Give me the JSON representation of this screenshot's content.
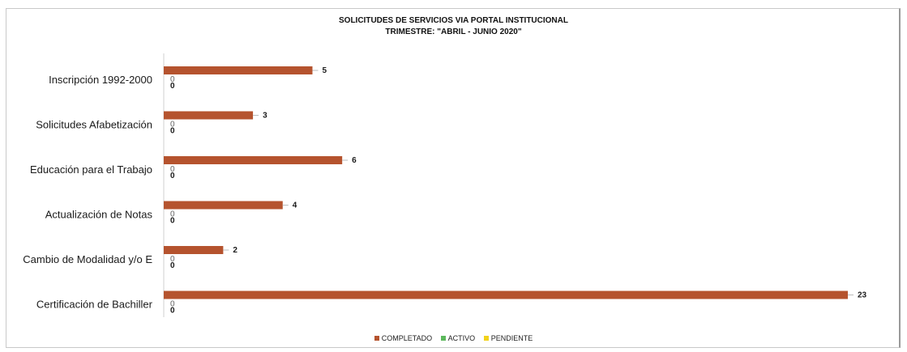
{
  "colors": {
    "completado": "#b5532e",
    "activo": "#5cb85c",
    "pendiente": "#f2d21b"
  },
  "chart_data": {
    "type": "bar",
    "orientation": "horizontal",
    "title": "SOLICITUDES DE SERVICIOS VIA PORTAL INSTITUCIONAL",
    "subtitle": "TRIMESTRE: \"ABRIL - JUNIO 2020\"",
    "categories": [
      "Inscripción 1992-2000",
      "Solicitudes Afabetización",
      "Educación para el Trabajo",
      "Actualización de Notas",
      "Cambio de Modalidad y/o E",
      "Certificación de Bachiller"
    ],
    "series": [
      {
        "name": "COMPLETADO",
        "values": [
          5,
          3,
          6,
          4,
          2,
          23
        ]
      },
      {
        "name": "ACTIVO",
        "values": [
          0,
          0,
          0,
          0,
          0,
          0
        ]
      },
      {
        "name": "PENDIENTE",
        "values": [
          0,
          0,
          0,
          0,
          0,
          0
        ]
      }
    ],
    "xlim": [
      0,
      23
    ],
    "grid": false,
    "legend_position": "bottom"
  }
}
